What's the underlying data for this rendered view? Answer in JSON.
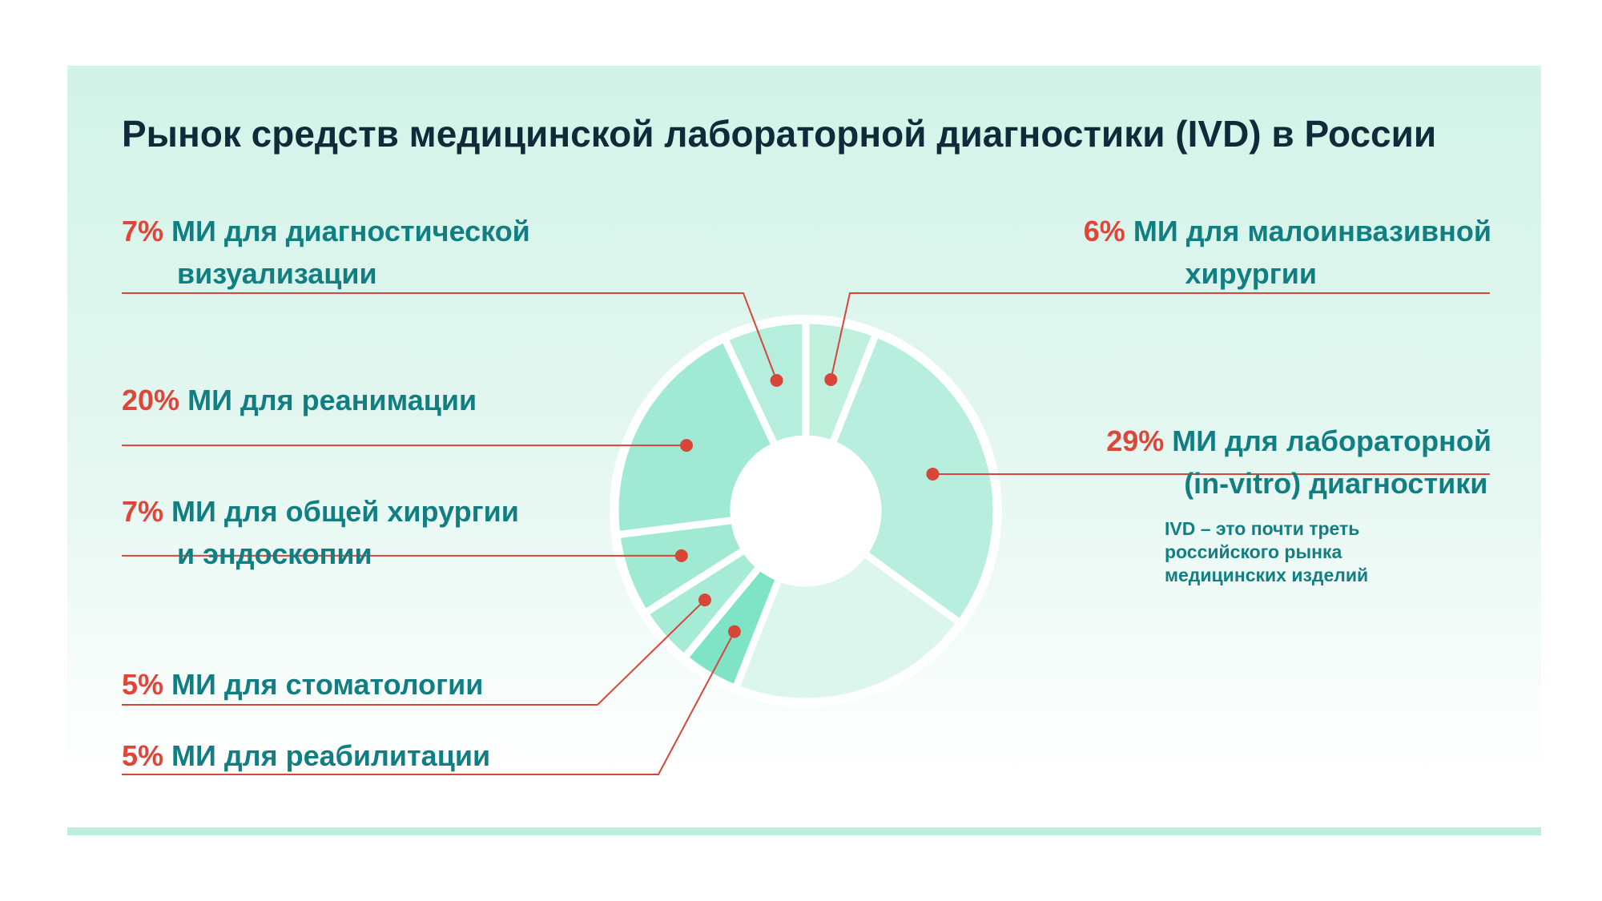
{
  "title": "Рынок средств медицинской лабораторной диагностики (IVD) в России",
  "note": "IVD – это почти треть российского рынка медицинских изделий",
  "colors": {
    "pct": "#e0453a",
    "label": "#117f82",
    "line": "#d8463a",
    "title": "#0f2b3a"
  },
  "chart_data": {
    "type": "pie",
    "title": "Рынок средств медицинской лабораторной диагностики (IVD) в России",
    "slices": [
      {
        "pct_label": "6%",
        "value": 6,
        "name_line1": "МИ для малоинвазивной",
        "name_line2": "хирургии",
        "color": "#bff0dd"
      },
      {
        "pct_label": "29%",
        "value": 29,
        "name_line1": "МИ для лабораторной",
        "name_line2": "(in-vitro) диагностики",
        "color": "#b7eedd"
      },
      {
        "pct_label": "",
        "value": 21,
        "name_line1": "",
        "name_line2": "",
        "color": "#dcf5ed"
      },
      {
        "pct_label": "5%",
        "value": 5,
        "name_line1": "МИ для реабилитации",
        "name_line2": "",
        "color": "#7fe3c6"
      },
      {
        "pct_label": "5%",
        "value": 5,
        "name_line1": "МИ для стоматологии",
        "name_line2": "",
        "color": "#a5ebd6"
      },
      {
        "pct_label": "7%",
        "value": 7,
        "name_line1": "МИ для общей хирургии",
        "name_line2": "и эндоскопии",
        "color": "#a0ead4"
      },
      {
        "pct_label": "20%",
        "value": 20,
        "name_line1": "МИ для реанимации",
        "name_line2": "",
        "color": "#a0ead5"
      },
      {
        "pct_label": "7%",
        "value": 7,
        "name_line1": "МИ для диагностической",
        "name_line2": "визуализации",
        "color": "#b5eedd"
      }
    ]
  }
}
